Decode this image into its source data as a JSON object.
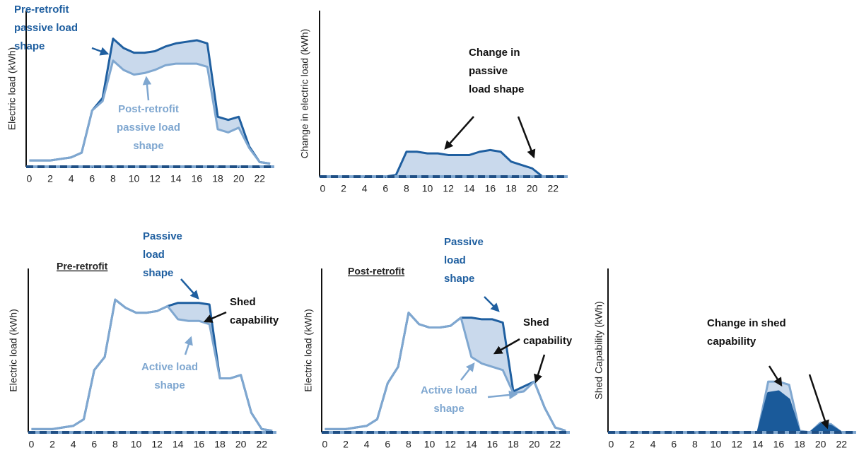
{
  "chart_data": [
    {
      "type": "line",
      "y_label": "Electric load (kWh)",
      "x": [
        0,
        1,
        2,
        3,
        4,
        5,
        6,
        7,
        8,
        9,
        10,
        11,
        12,
        13,
        14,
        15,
        16,
        17,
        18,
        19,
        20,
        21,
        22,
        23
      ],
      "xlim": [
        -0.3,
        23.4
      ],
      "ylim": [
        0,
        100
      ],
      "xticks": [
        0,
        2,
        4,
        6,
        8,
        10,
        12,
        14,
        16,
        18,
        20,
        22
      ],
      "fill": "between",
      "fill_color": "#c9d9ec",
      "series": [
        {
          "color": "#1f5fa0",
          "values": [
            4,
            4,
            4,
            5,
            6,
            9,
            36,
            44,
            82,
            76,
            73,
            73,
            74,
            77,
            79,
            80,
            81,
            79,
            32,
            30,
            32,
            13,
            3,
            2
          ]
        },
        {
          "color": "#7fa7d0",
          "values": [
            4,
            4,
            4,
            5,
            6,
            9,
            36,
            42,
            68,
            62,
            59,
            60,
            62,
            65,
            66,
            66,
            66,
            64,
            24,
            22,
            25,
            12,
            3,
            2
          ]
        }
      ],
      "annotations": [
        {
          "lines": [
            "Pre-retrofit",
            "passive load",
            "shape"
          ],
          "color": "#1f5fa0"
        },
        {
          "lines": [
            "Post-retrofit",
            "passive load",
            "shape"
          ],
          "color": "#7fa7d0"
        }
      ]
    },
    {
      "type": "line",
      "y_label": "Change in electric load  (kWh)",
      "x": [
        0,
        1,
        2,
        3,
        4,
        5,
        6,
        7,
        8,
        9,
        10,
        11,
        12,
        13,
        14,
        15,
        16,
        17,
        18,
        19,
        20,
        21,
        22,
        23
      ],
      "xlim": [
        -0.3,
        23.4
      ],
      "ylim": [
        0,
        100
      ],
      "xticks": [
        0,
        2,
        4,
        6,
        8,
        10,
        12,
        14,
        16,
        18,
        20,
        22
      ],
      "fill": "zero",
      "series": [
        {
          "color": "#1f5fa0",
          "fill_color": "#c9d9ec",
          "values": [
            0,
            0,
            0,
            0,
            0,
            0,
            0,
            1,
            15,
            15,
            14,
            14,
            13,
            13,
            13,
            15,
            16,
            15,
            9,
            7,
            5,
            0,
            0,
            0
          ]
        }
      ],
      "annotations": [
        {
          "lines": [
            "Change in",
            "passive",
            "load shape"
          ],
          "color": "#111111"
        }
      ]
    },
    {
      "type": "line",
      "y_label": "Electric load (kWh)",
      "subtitle": "Pre-retrofit",
      "x": [
        0,
        1,
        2,
        3,
        4,
        5,
        6,
        7,
        8,
        9,
        10,
        11,
        12,
        13,
        14,
        15,
        16,
        17,
        18,
        19,
        20,
        21,
        22,
        23
      ],
      "xlim": [
        -0.3,
        23.4
      ],
      "ylim": [
        0,
        100
      ],
      "xticks": [
        0,
        2,
        4,
        6,
        8,
        10,
        12,
        14,
        16,
        18,
        20,
        22
      ],
      "fill": "between",
      "fill_color": "#c9d9ec",
      "series": [
        {
          "color": "#1f5fa0",
          "values": [
            2,
            2,
            2,
            3,
            4,
            8,
            38,
            46,
            81,
            76,
            73,
            73,
            74,
            77,
            79,
            79,
            79,
            78,
            33,
            33,
            35,
            12,
            2,
            1
          ]
        },
        {
          "color": "#7fa7d0",
          "values": [
            2,
            2,
            2,
            3,
            4,
            8,
            38,
            46,
            81,
            76,
            73,
            73,
            74,
            77,
            69,
            68,
            68,
            66,
            33,
            33,
            35,
            12,
            2,
            1
          ]
        }
      ],
      "annotations": [
        {
          "lines": [
            "Passive",
            "load",
            "shape"
          ],
          "color": "#1f5fa0"
        },
        {
          "lines": [
            "Shed",
            "capability"
          ],
          "color": "#111111"
        },
        {
          "lines": [
            "Active load",
            "shape"
          ],
          "color": "#7fa7d0"
        }
      ]
    },
    {
      "type": "line",
      "y_label": "Electric load (kWh)",
      "subtitle": "Post-retrofit",
      "x": [
        0,
        1,
        2,
        3,
        4,
        5,
        6,
        7,
        8,
        9,
        10,
        11,
        12,
        13,
        14,
        15,
        16,
        17,
        18,
        19,
        20,
        21,
        22,
        23
      ],
      "xlim": [
        -0.3,
        23.4
      ],
      "ylim": [
        0,
        100
      ],
      "xticks": [
        0,
        2,
        4,
        6,
        8,
        10,
        12,
        14,
        16,
        18,
        20,
        22
      ],
      "fill": "between",
      "fill_color": "#c9d9ec",
      "series": [
        {
          "color": "#1f5fa0",
          "values": [
            2,
            2,
            2,
            3,
            4,
            8,
            30,
            40,
            73,
            66,
            64,
            64,
            65,
            70,
            70,
            69,
            69,
            67,
            25,
            28,
            31,
            15,
            3,
            1
          ]
        },
        {
          "color": "#7fa7d0",
          "values": [
            2,
            2,
            2,
            3,
            4,
            8,
            30,
            40,
            73,
            66,
            64,
            64,
            65,
            70,
            46,
            42,
            40,
            38,
            24,
            25,
            31,
            15,
            3,
            1
          ]
        }
      ],
      "annotations": [
        {
          "lines": [
            "Passive",
            "load",
            "shape"
          ],
          "color": "#1f5fa0"
        },
        {
          "lines": [
            "Shed",
            "capability"
          ],
          "color": "#111111"
        },
        {
          "lines": [
            "Active load",
            "shape"
          ],
          "color": "#7fa7d0"
        }
      ]
    },
    {
      "type": "line",
      "y_label": "Shed Capability (kWh)",
      "x": [
        0,
        1,
        2,
        3,
        4,
        5,
        6,
        7,
        8,
        9,
        10,
        11,
        12,
        13,
        14,
        15,
        16,
        17,
        18,
        19,
        20,
        21,
        22,
        23
      ],
      "xlim": [
        -0.3,
        23.4
      ],
      "ylim": [
        0,
        100
      ],
      "xticks": [
        0,
        2,
        4,
        6,
        8,
        10,
        12,
        14,
        16,
        18,
        20,
        22
      ],
      "fill": "zero",
      "series": [
        {
          "color": "#7fa7d0",
          "fill_color": "#c9d9ec",
          "values": [
            0,
            0,
            0,
            0,
            0,
            0,
            0,
            0,
            0,
            0,
            0,
            0,
            0,
            0,
            0,
            31,
            31,
            29,
            1,
            0,
            6,
            5,
            0,
            0
          ]
        },
        {
          "color": "#1a5a9a",
          "fill_color": "#1a5a9a",
          "values": [
            0,
            0,
            0,
            0,
            0,
            0,
            0,
            0,
            0,
            0,
            0,
            0,
            0,
            0,
            0,
            24,
            25,
            20,
            0,
            0,
            5,
            4,
            0,
            0
          ]
        }
      ],
      "annotations": [
        {
          "lines": [
            "Change in shed",
            "capability"
          ],
          "color": "#111111"
        }
      ]
    }
  ]
}
